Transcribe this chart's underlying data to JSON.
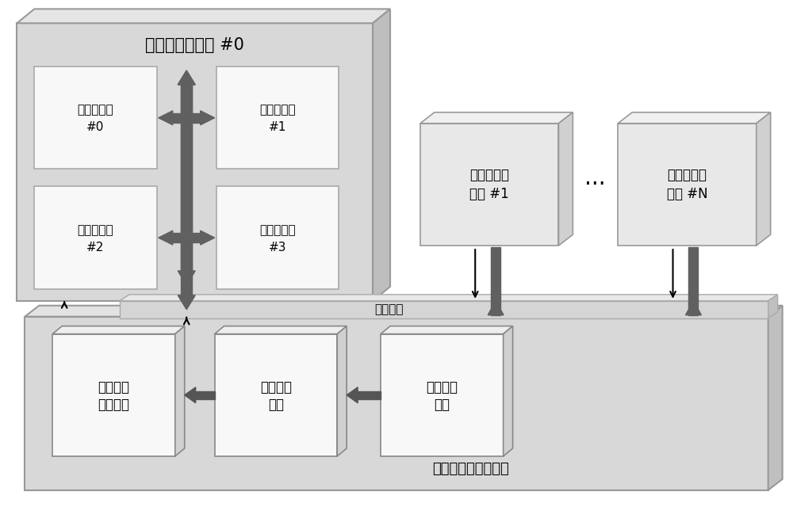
{
  "bg_color": "#ffffff",
  "face_gray_light": "#e0e0e0",
  "face_gray_mid": "#d0d0d0",
  "face_gray_dark": "#b8b8b8",
  "face_white": "#f5f5f5",
  "edge_color": "#888888",
  "arrow_dark": "#555555",
  "title_text": "可重构处理单元 #0",
  "array_labels": [
    "可重构阵列\n#0",
    "可重构阵列\n#1",
    "可重构阵列\n#2",
    "可重构阵列\n#3"
  ],
  "unit1_line1": "可重构处理",
  "unit1_line2": "单元 #1",
  "unitN_line1": "可重构处理",
  "unitN_line2": "单元 #N",
  "dots_text": "···",
  "bus_label": "任务总线",
  "mod0_line1": "任务发送",
  "mod0_line2": "接口模块",
  "mod1_line1": "任务解析",
  "mod1_line2": "模块",
  "mod2_line1": "任务生成",
  "mod2_line2": "模块",
  "mgmt_label": "多任务调度管理单元",
  "figsize": [
    10.0,
    6.59
  ],
  "dpi": 100
}
